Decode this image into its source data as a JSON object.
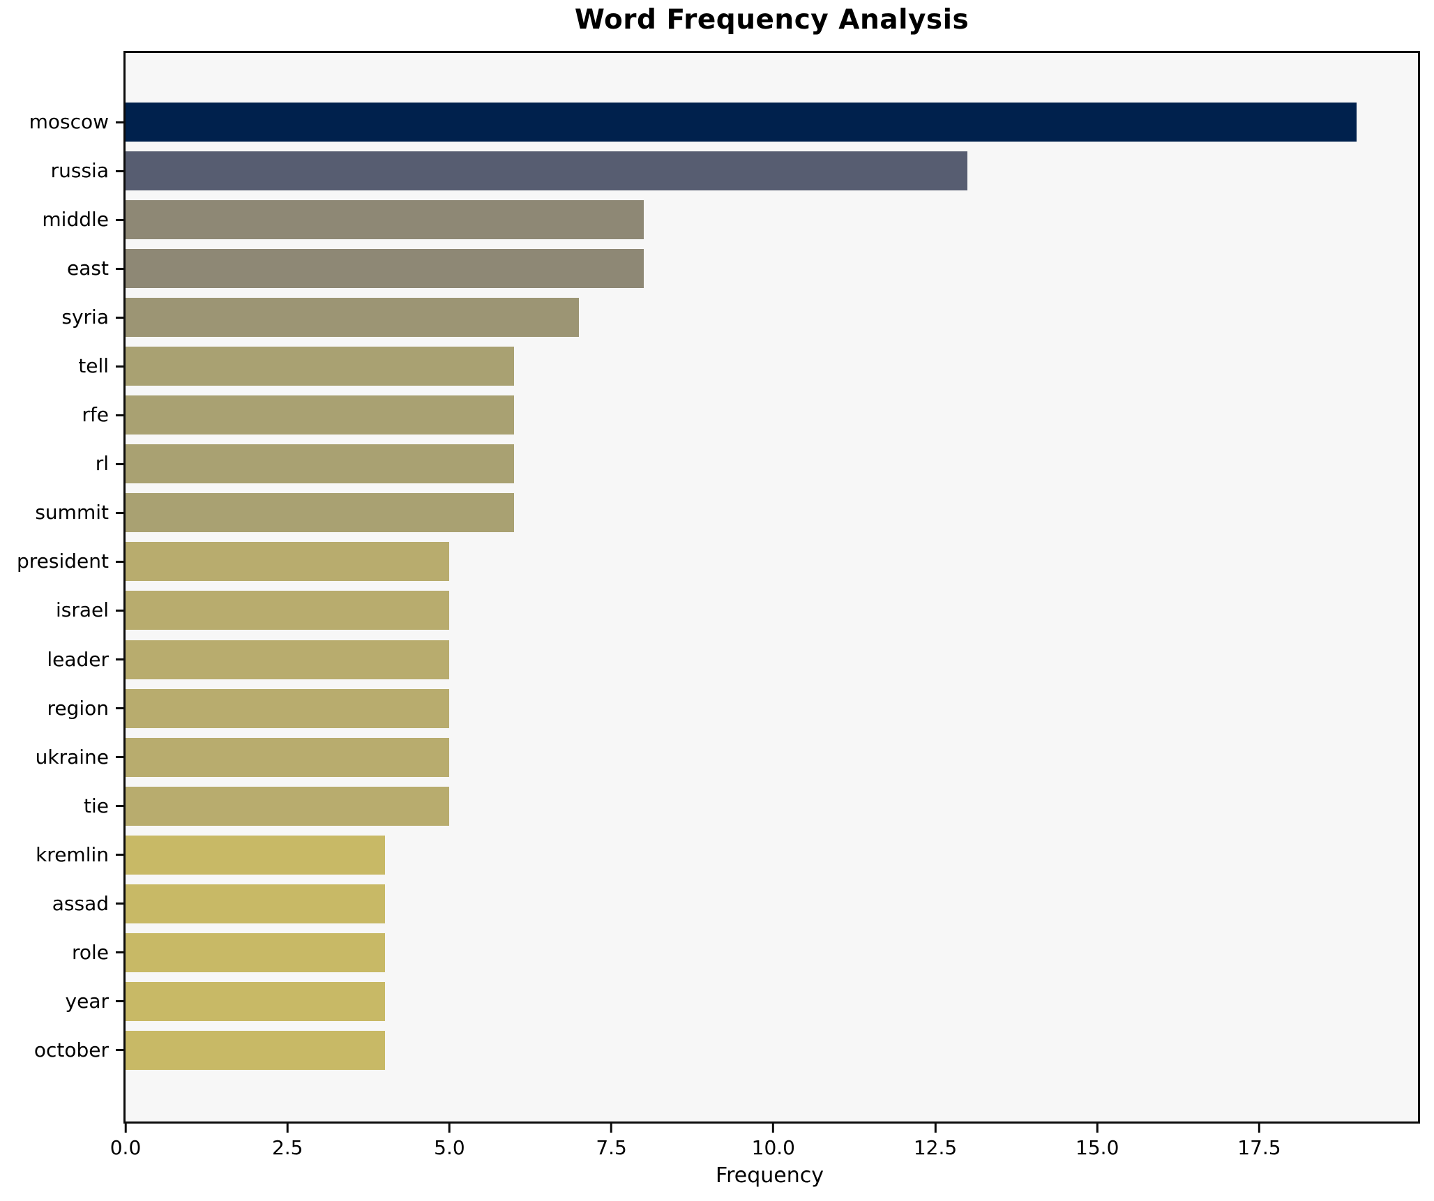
{
  "chart_data": {
    "type": "bar",
    "orientation": "horizontal",
    "title": "Word Frequency Analysis",
    "xlabel": "Frequency",
    "ylabel": "",
    "categories": [
      "moscow",
      "russia",
      "middle",
      "east",
      "syria",
      "tell",
      "rfe",
      "rl",
      "summit",
      "president",
      "israel",
      "leader",
      "region",
      "ukraine",
      "tie",
      "kremlin",
      "assad",
      "role",
      "year",
      "october"
    ],
    "values": [
      19,
      13,
      8,
      8,
      7,
      6,
      6,
      6,
      6,
      5,
      5,
      5,
      5,
      5,
      5,
      4,
      4,
      4,
      4,
      4
    ],
    "bar_colors": [
      "#00214d",
      "#575d71",
      "#8e8875",
      "#8e8875",
      "#9c9574",
      "#a9a172",
      "#a9a172",
      "#a9a172",
      "#a9a172",
      "#b8ac6e",
      "#b8ac6e",
      "#b8ac6e",
      "#b8ac6e",
      "#b8ac6e",
      "#b8ac6e",
      "#c8b966",
      "#c8b966",
      "#c8b966",
      "#c8b966",
      "#c8b966"
    ],
    "xlim": [
      0,
      19.95
    ],
    "xticks": [
      0.0,
      2.5,
      5.0,
      7.5,
      10.0,
      12.5,
      15.0,
      17.5
    ],
    "xtick_labels": [
      "0.0",
      "2.5",
      "5.0",
      "7.5",
      "10.0",
      "12.5",
      "15.0",
      "17.5"
    ],
    "grid": false,
    "legend": false,
    "plot_background": "#f7f7f7",
    "figure_background": "#ffffff",
    "axis_color": "#0c0c0c"
  }
}
